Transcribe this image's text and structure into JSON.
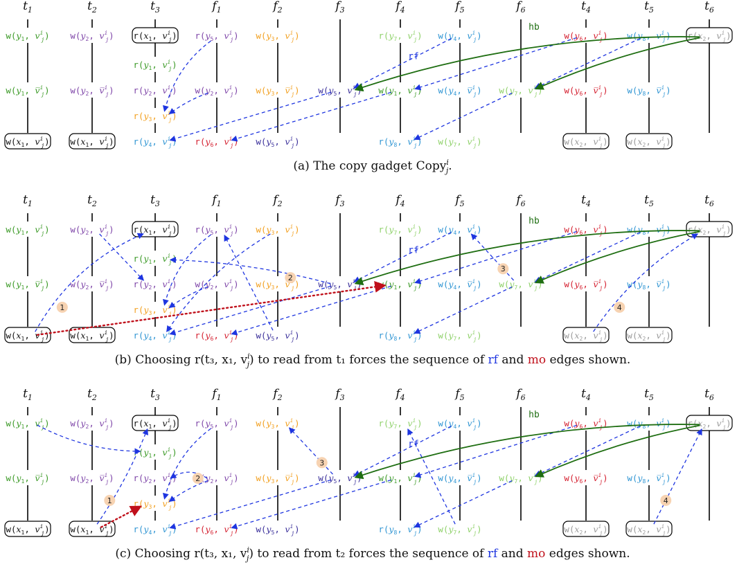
{
  "colors": {
    "t1": "#3c9a27",
    "t2": "#7e45a8",
    "t3": "#222222",
    "t4": "#d41f2f",
    "t5": "#2f95d3",
    "t6": "#9a9a9a",
    "y1": "#3c9a27",
    "y2": "#7e45a8",
    "y3": "#f2a020",
    "y4": "#2f95d3",
    "y5": "#3a2f9a",
    "y6": "#d41f2f",
    "y7": "#8fd16a",
    "y8": "#2f95d3",
    "x1": "#111111",
    "x2": "#9a9a9a",
    "rf": "#1e35e0",
    "hb": "#1f6e12",
    "mo": "#c0101b",
    "badge": "#f7d3b2"
  },
  "threads": [
    {
      "id": "t1",
      "label": "t",
      "sub": "1"
    },
    {
      "id": "t2",
      "label": "t",
      "sub": "2"
    },
    {
      "id": "t3",
      "label": "t",
      "sub": "3"
    },
    {
      "id": "f1",
      "label": "f",
      "sub": "1"
    },
    {
      "id": "f2",
      "label": "f",
      "sub": "2"
    },
    {
      "id": "f3",
      "label": "f",
      "sub": "3"
    },
    {
      "id": "f4",
      "label": "f",
      "sub": "4"
    },
    {
      "id": "f5",
      "label": "f",
      "sub": "5"
    },
    {
      "id": "f6",
      "label": "f",
      "sub": "6"
    },
    {
      "id": "t4",
      "label": "t",
      "sub": "4"
    },
    {
      "id": "t5",
      "label": "t",
      "sub": "5"
    },
    {
      "id": "t6",
      "label": "t",
      "sub": "6"
    }
  ],
  "events": [
    {
      "id": "t1a",
      "col": 0,
      "row": 0,
      "op": "w",
      "var": "y",
      "vsub": "1",
      "bar": false,
      "color": "y1",
      "boxed": false
    },
    {
      "id": "t1b",
      "col": 0,
      "row": 2,
      "op": "w",
      "var": "y",
      "vsub": "1",
      "bar": true,
      "color": "y1",
      "boxed": false
    },
    {
      "id": "t1c",
      "col": 0,
      "row": 4,
      "op": "w",
      "var": "x",
      "vsub": "1",
      "bar": false,
      "color": "x1",
      "boxed": true
    },
    {
      "id": "t2a",
      "col": 1,
      "row": 0,
      "op": "w",
      "var": "y",
      "vsub": "2",
      "bar": false,
      "color": "y2",
      "boxed": false
    },
    {
      "id": "t2b",
      "col": 1,
      "row": 2,
      "op": "w",
      "var": "y",
      "vsub": "2",
      "bar": true,
      "color": "y2",
      "boxed": false
    },
    {
      "id": "t2c",
      "col": 1,
      "row": 4,
      "op": "w",
      "var": "x",
      "vsub": "1",
      "bar": false,
      "color": "x1",
      "boxed": true
    },
    {
      "id": "t3a",
      "col": 2,
      "row": 0,
      "op": "r",
      "var": "x",
      "vsub": "1",
      "bar": false,
      "color": "x1",
      "boxed": true
    },
    {
      "id": "t3b",
      "col": 2,
      "row": 1,
      "op": "r",
      "var": "y",
      "vsub": "1",
      "bar": false,
      "color": "y1",
      "boxed": false
    },
    {
      "id": "t3c",
      "col": 2,
      "row": 2,
      "op": "r",
      "var": "y",
      "vsub": "2",
      "bar": false,
      "color": "y2",
      "boxed": false
    },
    {
      "id": "t3d",
      "col": 2,
      "row": 3,
      "op": "r",
      "var": "y",
      "vsub": "3",
      "bar": false,
      "color": "y3",
      "boxed": false
    },
    {
      "id": "t3e",
      "col": 2,
      "row": 4,
      "op": "r",
      "var": "y",
      "vsub": "4",
      "bar": false,
      "color": "y4",
      "boxed": false
    },
    {
      "id": "f1a",
      "col": 3,
      "row": 0,
      "op": "r",
      "var": "y",
      "vsub": "5",
      "bar": false,
      "color": "y2",
      "boxed": false
    },
    {
      "id": "f1b",
      "col": 3,
      "row": 2,
      "op": "w",
      "var": "y",
      "vsub": "2",
      "bar": false,
      "color": "y2",
      "boxed": false
    },
    {
      "id": "f1c",
      "col": 3,
      "row": 4,
      "op": "r",
      "var": "y",
      "vsub": "6",
      "bar": false,
      "color": "y6",
      "boxed": false
    },
    {
      "id": "f2a",
      "col": 4,
      "row": 0,
      "op": "w",
      "var": "y",
      "vsub": "3",
      "bar": false,
      "color": "y3",
      "boxed": false
    },
    {
      "id": "f2b",
      "col": 4,
      "row": 2,
      "op": "w",
      "var": "y",
      "vsub": "3",
      "bar": true,
      "color": "y3",
      "boxed": false
    },
    {
      "id": "f2c",
      "col": 4,
      "row": 4,
      "op": "w",
      "var": "y",
      "vsub": "5",
      "bar": false,
      "color": "y5",
      "boxed": false
    },
    {
      "id": "f3b",
      "col": 5,
      "row": 2,
      "op": "w",
      "var": "y",
      "vsub": "5",
      "bar": false,
      "color": "y5",
      "boxed": false
    },
    {
      "id": "f4a",
      "col": 6,
      "row": 0,
      "op": "r",
      "var": "y",
      "vsub": "7",
      "bar": false,
      "color": "y7",
      "boxed": false
    },
    {
      "id": "f4b",
      "col": 6,
      "row": 2,
      "op": "w",
      "var": "y",
      "vsub": "1",
      "bar": false,
      "color": "y1",
      "boxed": false
    },
    {
      "id": "f4c",
      "col": 6,
      "row": 4,
      "op": "r",
      "var": "y",
      "vsub": "8",
      "bar": false,
      "color": "y8",
      "boxed": false
    },
    {
      "id": "f5a",
      "col": 7,
      "row": 0,
      "op": "w",
      "var": "y",
      "vsub": "4",
      "bar": false,
      "color": "y4",
      "boxed": false
    },
    {
      "id": "f5b",
      "col": 7,
      "row": 2,
      "op": "w",
      "var": "y",
      "vsub": "4",
      "bar": true,
      "color": "y4",
      "boxed": false
    },
    {
      "id": "f5c",
      "col": 7,
      "row": 4,
      "op": "w",
      "var": "y",
      "vsub": "7",
      "bar": false,
      "color": "y7",
      "boxed": false
    },
    {
      "id": "f6b",
      "col": 8,
      "row": 2,
      "op": "w",
      "var": "y",
      "vsub": "7",
      "bar": false,
      "color": "y7",
      "boxed": false
    },
    {
      "id": "t4a",
      "col": 9,
      "row": 0,
      "op": "w",
      "var": "y",
      "vsub": "6",
      "bar": false,
      "color": "y6",
      "boxed": false
    },
    {
      "id": "t4b",
      "col": 9,
      "row": 2,
      "op": "w",
      "var": "y",
      "vsub": "6",
      "bar": true,
      "color": "y6",
      "boxed": false
    },
    {
      "id": "t4c",
      "col": 9,
      "row": 4,
      "op": "w",
      "var": "x",
      "vsub": "2",
      "bar": false,
      "color": "x2",
      "boxed": true
    },
    {
      "id": "t5a",
      "col": 10,
      "row": 0,
      "op": "w",
      "var": "y",
      "vsub": "8",
      "bar": false,
      "color": "y8",
      "boxed": false
    },
    {
      "id": "t5b",
      "col": 10,
      "row": 2,
      "op": "w",
      "var": "y",
      "vsub": "8",
      "bar": true,
      "color": "y8",
      "boxed": false
    },
    {
      "id": "t5c",
      "col": 10,
      "row": 4,
      "op": "w",
      "var": "x",
      "vsub": "2",
      "bar": false,
      "color": "x2",
      "boxed": true
    },
    {
      "id": "t6a",
      "col": 11,
      "row": 0,
      "op": "r",
      "var": "x",
      "vsub": "2",
      "bar": false,
      "color": "x2",
      "boxed": true
    }
  ],
  "base_edges": [
    {
      "from": "f1a",
      "to": "t3d",
      "kind": "rf",
      "bend": 0.15
    },
    {
      "from": "f1b",
      "to": "t3d",
      "kind": "rf",
      "bend": 0.05
    },
    {
      "from": "f3b",
      "to": "t3e",
      "kind": "rf",
      "bend": 0.0
    },
    {
      "from": "f5a",
      "to": "f3b",
      "kind": "rf",
      "bend": 0.0,
      "label": "rf"
    },
    {
      "from": "f4b",
      "to": "f1c",
      "kind": "rf",
      "bend": 0.0
    },
    {
      "from": "t4a",
      "to": "f4b",
      "kind": "rf",
      "bend": 0.0
    },
    {
      "from": "t5a",
      "to": "f6b",
      "kind": "rf",
      "bend": 0.0
    },
    {
      "from": "f6b",
      "to": "f4c",
      "kind": "rf",
      "bend": 0.0
    },
    {
      "from": "t6a",
      "to": "f3b",
      "kind": "hb",
      "bend": 0.08,
      "label": "hb"
    },
    {
      "from": "t6a",
      "to": "f6b",
      "kind": "hb",
      "bend": 0.05
    }
  ],
  "panels": [
    {
      "caption": "(a)  The copy gadget Copy",
      "caption_sub": "j",
      "caption_sup": "i",
      "caption_tail": ".",
      "extra_edges": []
    },
    {
      "caption": "(b)  Choosing r(t₃, x₁, v",
      "caption_sub": "j",
      "caption_sup": "i",
      "caption_tail": ") to read from t₁ forces the sequence of ",
      "caption_rf": "rf",
      "caption_and": " and ",
      "caption_mo": "mo",
      "caption_end": " edges shown.",
      "extra_edges": [
        {
          "from": "t1c",
          "to": "t3a",
          "kind": "rf",
          "bend": -0.15,
          "step": "1"
        },
        {
          "from": "t1c",
          "to": "f4b",
          "kind": "mo",
          "bend": 0.0
        },
        {
          "from": "t2a",
          "to": "t3c",
          "kind": "rf",
          "bend": 0.0
        },
        {
          "from": "f3b",
          "to": "t3b",
          "kind": "rf",
          "bend": 0.05,
          "step": "2"
        },
        {
          "from": "f6b",
          "to": "f5a",
          "kind": "rf",
          "bend": 0.0,
          "step": "3"
        },
        {
          "from": "t4c",
          "to": "t6a",
          "kind": "rf",
          "bend": -0.1,
          "step": "4"
        },
        {
          "from": "f2c",
          "to": "f1a",
          "kind": "rf",
          "bend": 0.0
        },
        {
          "from": "f2a",
          "to": "t3e",
          "kind": "rf",
          "bend": 0.1
        }
      ]
    },
    {
      "caption": "(c)  Choosing r(t₃, x₁, v",
      "caption_sub": "j",
      "caption_sup": "i",
      "caption_tail": ") to read from t₂ forces the sequence of ",
      "caption_rf": "rf",
      "caption_and": " and ",
      "caption_mo": "mo",
      "caption_end": " edges shown.",
      "extra_edges": [
        {
          "from": "t2c",
          "to": "t3a",
          "kind": "rf",
          "bend": 0.05,
          "step": "1"
        },
        {
          "from": "t2c",
          "to": "t3d",
          "kind": "mo",
          "bend": 0.0
        },
        {
          "from": "t1a",
          "to": "t3b",
          "kind": "rf",
          "bend": 0.1
        },
        {
          "from": "f1b",
          "to": "t3c",
          "kind": "rf",
          "bend": 0.2,
          "step": "2"
        },
        {
          "from": "f3b",
          "to": "f2a",
          "kind": "rf",
          "bend": 0.0,
          "step": "3"
        },
        {
          "from": "t5c",
          "to": "t6a",
          "kind": "rf",
          "bend": 0.0,
          "step": "4"
        },
        {
          "from": "f5c",
          "to": "f4a",
          "kind": "rf",
          "bend": 0.0
        }
      ]
    }
  ]
}
